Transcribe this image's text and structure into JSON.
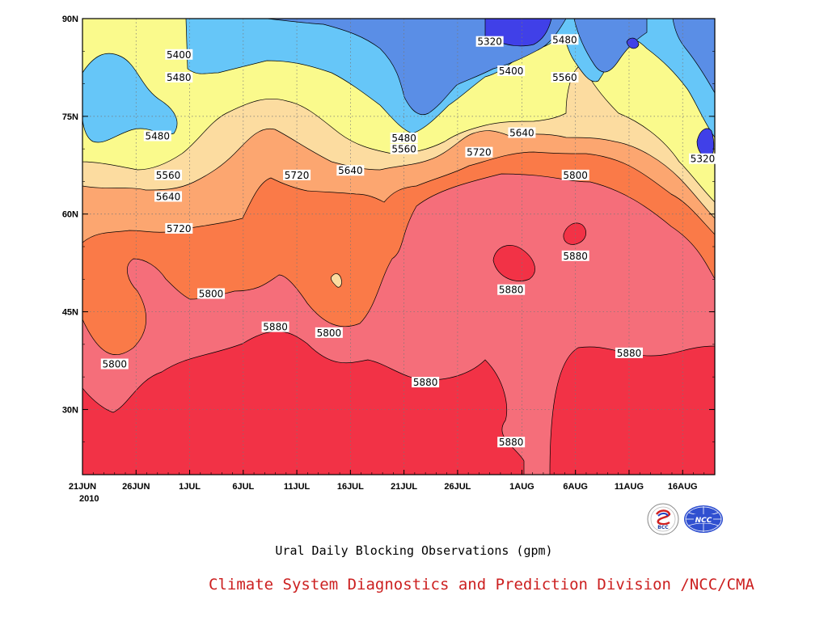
{
  "chart_data": {
    "type": "contour",
    "title": "",
    "subtitle": "Ural Daily Blocking Observations (gpm)",
    "footer": "Climate System Diagnostics and Prediction Division /NCC/CMA",
    "x_ticks": [
      "21JUN",
      "26JUN",
      "1JUL",
      "6JUL",
      "11JUL",
      "16JUL",
      "21JUL",
      "26JUL",
      "1AUG",
      "6AUG",
      "11AUG",
      "16AUG"
    ],
    "x_year_label": "2010",
    "y_ticks": [
      "90N",
      "75N",
      "60N",
      "45N",
      "30N"
    ],
    "xlim": [
      "2010-06-21",
      "2010-08-19"
    ],
    "ylim": [
      20,
      90
    ],
    "grid": true,
    "levels": [
      5320,
      5400,
      5480,
      5560,
      5640,
      5720,
      5800,
      5880
    ],
    "level_colors": [
      "#4040e8",
      "#5a8ee6",
      "#66c6f8",
      "#fafa8c",
      "#fcdca0",
      "#fca670",
      "#fa7a48",
      "#f56e7a",
      "#f23246"
    ],
    "contour_labels": [
      {
        "value": "5320",
        "date": "2010-07-29",
        "lat": 86.5
      },
      {
        "value": "5480",
        "date": "2010-08-05",
        "lat": 86.8
      },
      {
        "value": "5400",
        "date": "2010-06-30",
        "lat": 84.5
      },
      {
        "value": "5480",
        "date": "2010-06-30",
        "lat": 81.0
      },
      {
        "value": "5400",
        "date": "2010-07-31",
        "lat": 82.0
      },
      {
        "value": "5560",
        "date": "2010-08-05",
        "lat": 81.0
      },
      {
        "value": "5480",
        "date": "2010-06-28",
        "lat": 72.0
      },
      {
        "value": "5480",
        "date": "2010-07-21",
        "lat": 71.7
      },
      {
        "value": "5560",
        "date": "2010-07-21",
        "lat": 70.0
      },
      {
        "value": "5640",
        "date": "2010-08-01",
        "lat": 72.5
      },
      {
        "value": "5720",
        "date": "2010-07-28",
        "lat": 69.5
      },
      {
        "value": "5320",
        "date": "2010-08-18",
        "lat": 68.5
      },
      {
        "value": "5560",
        "date": "2010-06-29",
        "lat": 66.0
      },
      {
        "value": "5720",
        "date": "2010-07-11",
        "lat": 66.0
      },
      {
        "value": "5640",
        "date": "2010-07-16",
        "lat": 66.7
      },
      {
        "value": "5800",
        "date": "2010-08-06",
        "lat": 66.0
      },
      {
        "value": "5640",
        "date": "2010-06-29",
        "lat": 62.7
      },
      {
        "value": "5720",
        "date": "2010-06-30",
        "lat": 57.8
      },
      {
        "value": "5880",
        "date": "2010-08-06",
        "lat": 53.6
      },
      {
        "value": "5800",
        "date": "2010-07-03",
        "lat": 47.8
      },
      {
        "value": "5880",
        "date": "2010-07-31",
        "lat": 48.4
      },
      {
        "value": "5880",
        "date": "2010-07-09",
        "lat": 42.7
      },
      {
        "value": "5800",
        "date": "2010-07-14",
        "lat": 41.8
      },
      {
        "value": "5880",
        "date": "2010-08-11",
        "lat": 38.7
      },
      {
        "value": "5800",
        "date": "2010-06-24",
        "lat": 37.0
      },
      {
        "value": "5880",
        "date": "2010-07-23",
        "lat": 34.2
      },
      {
        "value": "5880",
        "date": "2010-07-31",
        "lat": 25.0
      }
    ]
  }
}
